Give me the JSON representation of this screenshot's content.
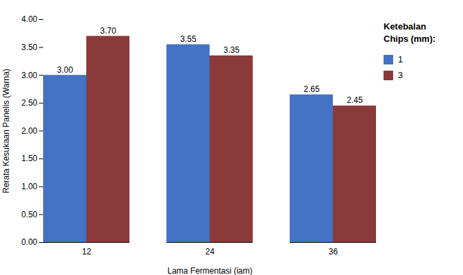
{
  "chart_data": {
    "type": "bar",
    "categories": [
      "12",
      "24",
      "36"
    ],
    "series": [
      {
        "name": "1",
        "color": "#4472C4",
        "values": [
          3.0,
          3.55,
          2.65
        ],
        "value_labels": [
          "3.00",
          "3.55",
          "2.65"
        ]
      },
      {
        "name": "3",
        "color": "#8B3A3A",
        "values": [
          3.7,
          3.35,
          2.45
        ],
        "value_labels": [
          "3.70",
          "3.35",
          "2.45"
        ]
      }
    ],
    "xlabel": "Lama Fermentasi (iam)",
    "ylabel": "Rerata Kesukaan Panelis (Warna)",
    "ylim": [
      0,
      4.0
    ],
    "yticks": [
      {
        "value": 0,
        "label": "0.00"
      },
      {
        "value": 0.5,
        "label": "0.50"
      },
      {
        "value": 1,
        "label": "1.00"
      },
      {
        "value": 1.5,
        "label": "1.50"
      },
      {
        "value": 2,
        "label": "2.00"
      },
      {
        "value": 2.5,
        "label": "2.50"
      },
      {
        "value": 3,
        "label": "3.00"
      },
      {
        "value": 3.5,
        "label": "3.50"
      },
      {
        "value": 4,
        "label": "4.00"
      }
    ],
    "grid": false,
    "data_labels": true,
    "legend": "right",
    "legend_title": [
      "Ketebalan",
      "Chips (mm):"
    ]
  }
}
